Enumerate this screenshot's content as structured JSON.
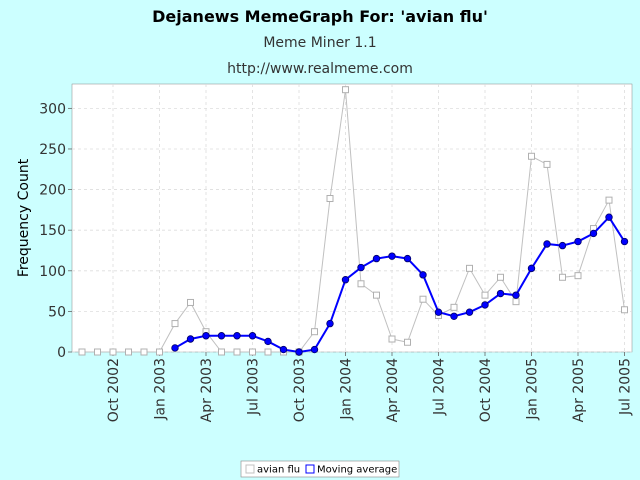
{
  "chart_data": {
    "type": "line",
    "title": "Dejanews MemeGraph For: 'avian flu'",
    "subtitles": [
      "Meme Miner 1.1",
      "http://www.realmeme.com"
    ],
    "xlabel": "",
    "ylabel": "Frequency Count",
    "ylim": [
      0,
      330
    ],
    "yticks": [
      0,
      50,
      100,
      150,
      200,
      250,
      300
    ],
    "x_tick_labels": [
      "Oct 2002",
      "Jan 2003",
      "Apr 2003",
      "Jul 2003",
      "Oct 2003",
      "Jan 2004",
      "Apr 2004",
      "Jul 2004",
      "Oct 2004",
      "Jan 2005",
      "Apr 2005",
      "Jul 2005"
    ],
    "grid": true,
    "legend_position": "bottom",
    "series": [
      {
        "name": "avian flu",
        "color": "#c0c0c0",
        "marker": "square-open",
        "values": [
          0,
          0,
          0,
          0,
          0,
          0,
          35,
          61,
          25,
          0,
          0,
          0,
          0,
          0,
          0,
          25,
          189,
          323,
          84,
          70,
          16,
          12,
          65,
          45,
          55,
          103,
          70,
          92,
          62,
          241,
          231,
          92,
          94,
          152,
          187,
          52
        ]
      },
      {
        "name": "Moving average",
        "color": "#0000ff",
        "marker": "circle-filled",
        "start_index": 6,
        "values": [
          5,
          16,
          20,
          20,
          20,
          20,
          13,
          3,
          0,
          3,
          35,
          89,
          104,
          115,
          118,
          115,
          95,
          49,
          44,
          49,
          58,
          72,
          70,
          103,
          133,
          131,
          136,
          146,
          166,
          136
        ]
      }
    ],
    "legend": [
      {
        "label": "avian flu",
        "color": "#c0c0c0"
      },
      {
        "label": "Moving average",
        "color": "#0000ff"
      }
    ]
  }
}
